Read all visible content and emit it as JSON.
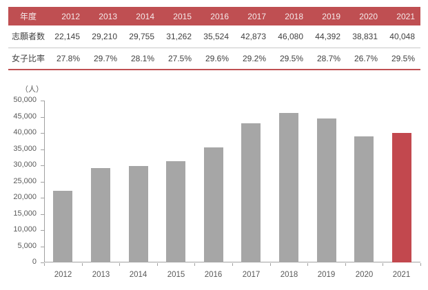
{
  "colors": {
    "accent_red": "#bf4f52",
    "bar_gray": "#a6a6a6",
    "bar_highlight": "#c2484e",
    "header_text": "#f5eaea",
    "body_text": "#404040",
    "axis_text": "#595959",
    "axis_line": "#a0a0a0",
    "row_divider": "#c8c8c8"
  },
  "table": {
    "corner_label": "年度",
    "years": [
      "2012",
      "2013",
      "2014",
      "2015",
      "2016",
      "2017",
      "2018",
      "2019",
      "2020",
      "2021"
    ],
    "rows": [
      {
        "label": "志願者数",
        "values": [
          "22,145",
          "29,210",
          "29,755",
          "31,262",
          "35,524",
          "42,873",
          "46,080",
          "44,392",
          "38,831",
          "40,048"
        ]
      },
      {
        "label": "女子比率",
        "values": [
          "27.8%",
          "29.7%",
          "28.1%",
          "27.5%",
          "29.6%",
          "29.2%",
          "29.5%",
          "28.7%",
          "26.7%",
          "29.5%"
        ]
      }
    ]
  },
  "chart_data": {
    "type": "bar",
    "title": "",
    "unit_label": "（人）",
    "categories": [
      "2012",
      "2013",
      "2014",
      "2015",
      "2016",
      "2017",
      "2018",
      "2019",
      "2020",
      "2021"
    ],
    "values": [
      22145,
      29210,
      29755,
      31262,
      35524,
      42873,
      46080,
      44392,
      38831,
      40048
    ],
    "xlabel": "",
    "ylabel": "人",
    "ylim": [
      0,
      50000
    ],
    "ytick_step": 5000,
    "grid": false,
    "legend": "none",
    "bar_color": "#a6a6a6",
    "highlight_index": 9,
    "highlight_color": "#c2484e"
  }
}
